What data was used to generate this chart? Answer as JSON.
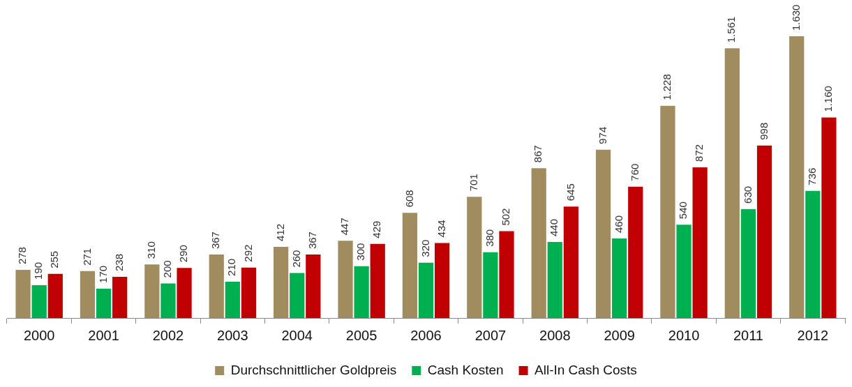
{
  "chart_data": {
    "type": "bar",
    "categories": [
      "2000",
      "2001",
      "2002",
      "2003",
      "2004",
      "2005",
      "2006",
      "2007",
      "2008",
      "2009",
      "2010",
      "2011",
      "2012"
    ],
    "series": [
      {
        "name": "Durchschnittlicher Goldpreis",
        "color": "#a08c5e",
        "values": [
          278,
          271,
          310,
          367,
          412,
          447,
          608,
          701,
          867,
          974,
          1228,
          1561,
          1630
        ],
        "value_labels": [
          "278",
          "271",
          "310",
          "367",
          "412",
          "447",
          "608",
          "701",
          "867",
          "974",
          "1.228",
          "1.561",
          "1.630"
        ]
      },
      {
        "name": "Cash Kosten",
        "color": "#00b050",
        "values": [
          190,
          170,
          200,
          210,
          260,
          300,
          320,
          380,
          440,
          460,
          540,
          630,
          736
        ],
        "value_labels": [
          "190",
          "170",
          "200",
          "210",
          "260",
          "300",
          "320",
          "380",
          "440",
          "460",
          "540",
          "630",
          "736"
        ]
      },
      {
        "name": "All-In Cash Costs",
        "color": "#c00000",
        "values": [
          255,
          238,
          290,
          292,
          367,
          429,
          434,
          502,
          645,
          760,
          872,
          998,
          1160
        ],
        "value_labels": [
          "255",
          "238",
          "290",
          "292",
          "367",
          "429",
          "434",
          "502",
          "645",
          "760",
          "872",
          "998",
          "1.160"
        ]
      }
    ],
    "legend": "bottom",
    "grid": false
  }
}
